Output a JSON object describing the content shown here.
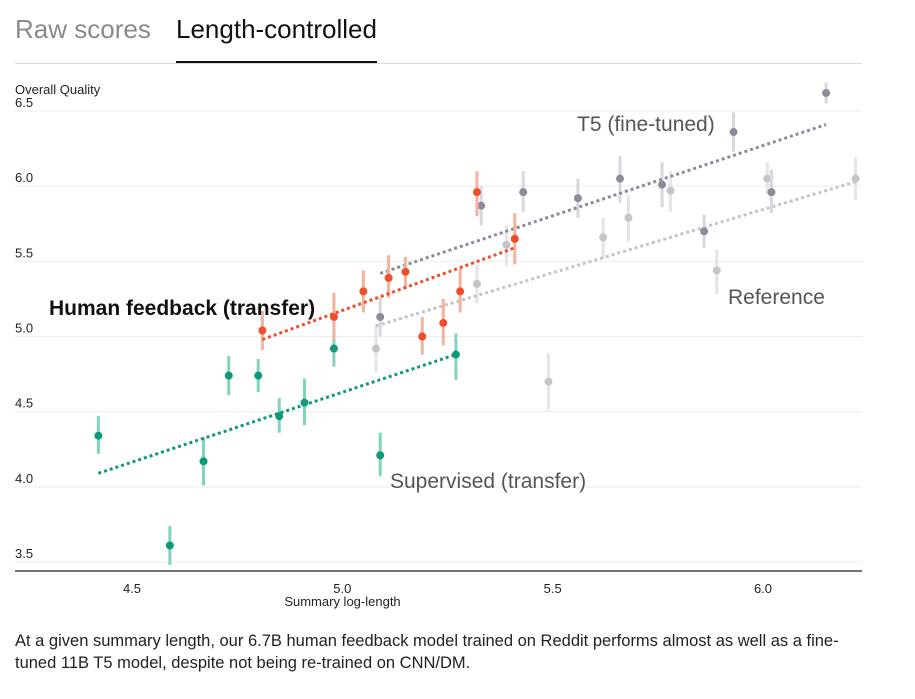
{
  "tabs": [
    {
      "label": "Raw scores",
      "active": false
    },
    {
      "label": "Length-controlled",
      "active": true
    }
  ],
  "caption": "At a given summary length, our 6.7B human feedback model trained on Reddit performs almost as well as a fine-tuned 11B T5 model, despite not being re-trained on CNN/DM.",
  "chart_data": {
    "type": "scatter",
    "ylabel": "Overall Quality",
    "xlabel": "Summary log-length",
    "xlim": [
      4.0,
      6.23
    ],
    "ylim": [
      3.5,
      6.65
    ],
    "xticks": [
      4.5,
      5.0,
      5.5,
      6.0
    ],
    "yticks": [
      3.5,
      4.0,
      4.5,
      5.0,
      5.5,
      6.0,
      6.5
    ],
    "xtick_labels": [
      "4.5",
      "5.0",
      "5.5",
      "6.0"
    ],
    "ytick_labels": [
      "3.5",
      "4.0",
      "4.5",
      "5.0",
      "5.5",
      "6.0",
      "6.5"
    ],
    "grid": true,
    "series": [
      {
        "name": "Supervised (transfer)",
        "color": "#0e9a7a",
        "error_color": "#82d3bd",
        "points": [
          {
            "x": 4.42,
            "y": 4.34,
            "lo": 4.22,
            "hi": 4.47
          },
          {
            "x": 4.59,
            "y": 3.61,
            "lo": 3.48,
            "hi": 3.74
          },
          {
            "x": 4.67,
            "y": 4.17,
            "lo": 4.01,
            "hi": 4.33
          },
          {
            "x": 4.73,
            "y": 4.74,
            "lo": 4.61,
            "hi": 4.87
          },
          {
            "x": 4.8,
            "y": 4.74,
            "lo": 4.63,
            "hi": 4.85
          },
          {
            "x": 4.85,
            "y": 4.47,
            "lo": 4.36,
            "hi": 4.59
          },
          {
            "x": 4.91,
            "y": 4.56,
            "lo": 4.41,
            "hi": 4.72
          },
          {
            "x": 4.98,
            "y": 4.92,
            "lo": 4.8,
            "hi": 5.04
          },
          {
            "x": 5.09,
            "y": 4.21,
            "lo": 4.07,
            "hi": 4.36
          },
          {
            "x": 5.27,
            "y": 4.88,
            "lo": 4.71,
            "hi": 5.02
          }
        ],
        "trend": {
          "x0": 4.42,
          "y0": 4.09,
          "x1": 5.27,
          "y1": 4.88
        }
      },
      {
        "name": "Human feedback (transfer)",
        "color": "#ee4e2b",
        "error_color": "#f4b29f",
        "points": [
          {
            "x": 4.81,
            "y": 5.04,
            "lo": 4.91,
            "hi": 5.17
          },
          {
            "x": 4.98,
            "y": 5.13,
            "lo": 4.98,
            "hi": 5.29
          },
          {
            "x": 5.05,
            "y": 5.3,
            "lo": 5.16,
            "hi": 5.44
          },
          {
            "x": 5.11,
            "y": 5.39,
            "lo": 5.26,
            "hi": 5.54
          },
          {
            "x": 5.15,
            "y": 5.43,
            "lo": 5.32,
            "hi": 5.53
          },
          {
            "x": 5.19,
            "y": 5.0,
            "lo": 4.88,
            "hi": 5.13
          },
          {
            "x": 5.24,
            "y": 5.09,
            "lo": 4.94,
            "hi": 5.25
          },
          {
            "x": 5.28,
            "y": 5.3,
            "lo": 5.16,
            "hi": 5.45
          },
          {
            "x": 5.32,
            "y": 5.96,
            "lo": 5.8,
            "hi": 6.1
          },
          {
            "x": 5.41,
            "y": 5.65,
            "lo": 5.48,
            "hi": 5.82
          }
        ],
        "trend": {
          "x0": 4.81,
          "y0": 4.98,
          "x1": 5.41,
          "y1": 5.59
        }
      },
      {
        "name": "T5 (fine-tuned)",
        "color": "#8f8a9a",
        "error_color": "#d9d7de",
        "points": [
          {
            "x": 5.09,
            "y": 5.13,
            "lo": 5.0,
            "hi": 5.26
          },
          {
            "x": 5.33,
            "y": 5.87,
            "lo": 5.74,
            "hi": 6.0
          },
          {
            "x": 5.43,
            "y": 5.96,
            "lo": 5.83,
            "hi": 6.1
          },
          {
            "x": 5.56,
            "y": 5.92,
            "lo": 5.79,
            "hi": 6.05
          },
          {
            "x": 5.66,
            "y": 6.05,
            "lo": 5.89,
            "hi": 6.2
          },
          {
            "x": 5.76,
            "y": 6.01,
            "lo": 5.86,
            "hi": 6.16
          },
          {
            "x": 5.86,
            "y": 5.7,
            "lo": 5.59,
            "hi": 5.81
          },
          {
            "x": 5.93,
            "y": 6.36,
            "lo": 6.23,
            "hi": 6.49
          },
          {
            "x": 6.02,
            "y": 5.96,
            "lo": 5.82,
            "hi": 6.11
          },
          {
            "x": 6.15,
            "y": 6.62,
            "lo": 6.55,
            "hi": 6.69
          }
        ],
        "trend": {
          "x0": 5.09,
          "y0": 5.42,
          "x1": 6.15,
          "y1": 6.41
        }
      },
      {
        "name": "Reference",
        "color": "#c4c4c9",
        "error_color": "#e5e5e8",
        "points": [
          {
            "x": 5.08,
            "y": 4.92,
            "lo": 4.76,
            "hi": 5.08
          },
          {
            "x": 5.32,
            "y": 5.35,
            "lo": 5.22,
            "hi": 5.48
          },
          {
            "x": 5.39,
            "y": 5.61,
            "lo": 5.47,
            "hi": 5.74
          },
          {
            "x": 5.49,
            "y": 4.7,
            "lo": 4.51,
            "hi": 4.89
          },
          {
            "x": 5.62,
            "y": 5.66,
            "lo": 5.52,
            "hi": 5.79
          },
          {
            "x": 5.68,
            "y": 5.79,
            "lo": 5.63,
            "hi": 5.94
          },
          {
            "x": 5.78,
            "y": 5.97,
            "lo": 5.83,
            "hi": 6.1
          },
          {
            "x": 5.89,
            "y": 5.44,
            "lo": 5.28,
            "hi": 5.58
          },
          {
            "x": 6.01,
            "y": 6.05,
            "lo": 5.95,
            "hi": 6.16
          },
          {
            "x": 6.22,
            "y": 6.05,
            "lo": 5.91,
            "hi": 6.19
          }
        ],
        "trend": {
          "x0": 5.08,
          "y0": 5.07,
          "x1": 6.22,
          "y1": 6.03
        }
      }
    ],
    "annotations": [
      {
        "text": "Human feedback (transfer)",
        "series": 1,
        "bold": true
      },
      {
        "text": "Supervised (transfer)",
        "series": 0,
        "bold": false
      },
      {
        "text": "T5 (fine-tuned)",
        "series": 2,
        "bold": false
      },
      {
        "text": "Reference",
        "series": 3,
        "bold": false
      }
    ]
  }
}
